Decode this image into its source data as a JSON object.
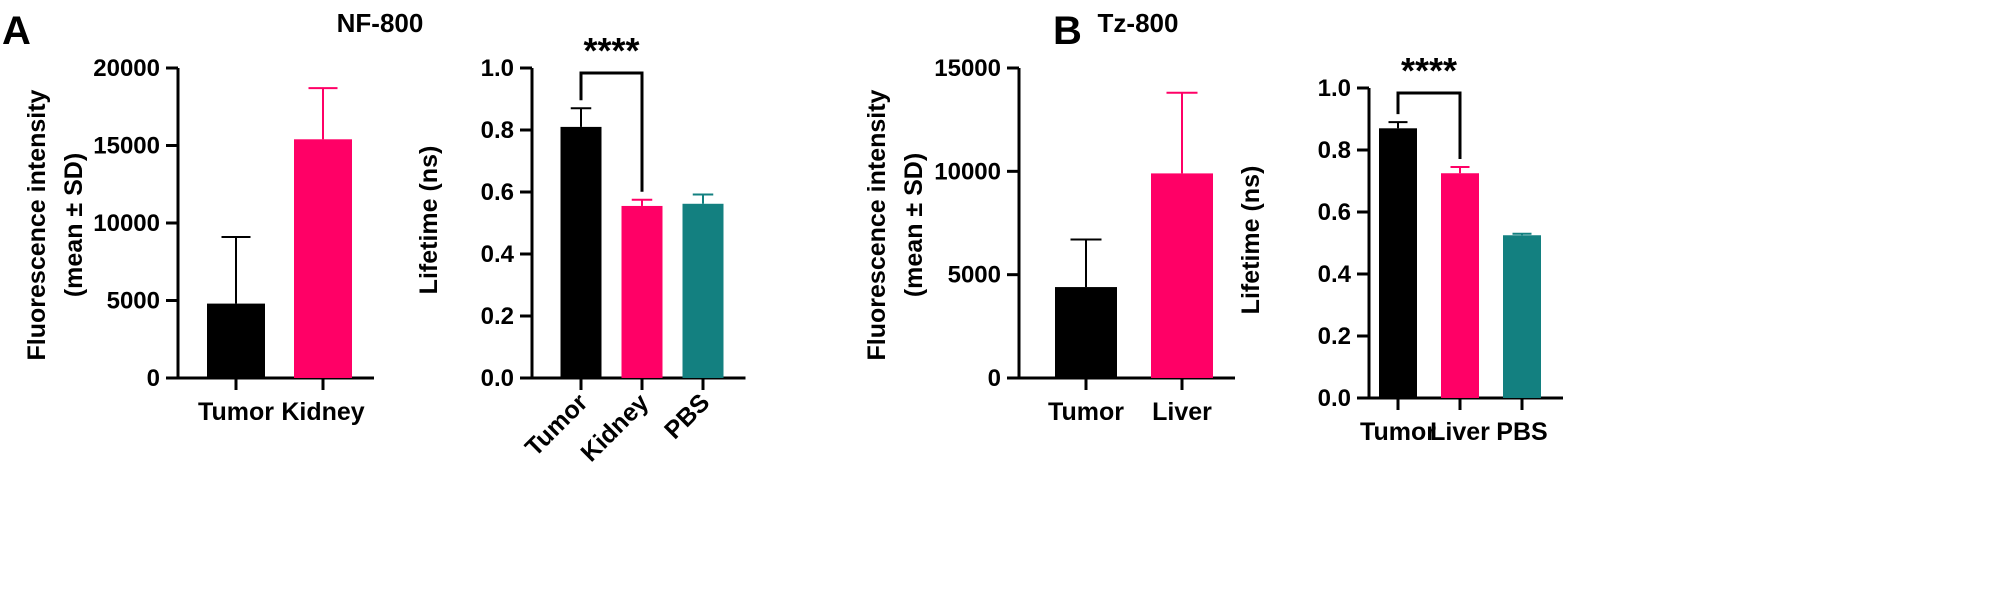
{
  "panels": [
    {
      "letter": "A"
    },
    {
      "letter": "B"
    }
  ],
  "chart_data": [
    {
      "type": "bar",
      "panel": "A",
      "title": "NF-800",
      "ylabel_line1": "Fluorescence intensity",
      "ylabel_line2": "(mean ± SD)",
      "xlabel": "",
      "categories": [
        "Tumor",
        "Kidney"
      ],
      "values": [
        4800,
        15400
      ],
      "errors": [
        4300,
        3300
      ],
      "colors": [
        "#000000",
        "#ff0066"
      ],
      "ylim": [
        0,
        20000
      ],
      "yticks": [
        0,
        5000,
        10000,
        15000,
        20000
      ],
      "tick_labels": [
        "0",
        "5000",
        "10000",
        "15000",
        "20000"
      ],
      "rotate_labels": false
    },
    {
      "type": "bar",
      "panel": "A",
      "title": "",
      "ylabel_line1": "Lifetime (ns)",
      "ylabel_line2": "",
      "xlabel": "",
      "categories": [
        "Tumor",
        "Kidney",
        "PBS"
      ],
      "values": [
        0.81,
        0.555,
        0.562
      ],
      "errors": [
        0.06,
        0.02,
        0.03
      ],
      "colors": [
        "#000000",
        "#ff0066",
        "#138080"
      ],
      "ylim": [
        0,
        1.0
      ],
      "yticks": [
        0,
        0.2,
        0.4,
        0.6,
        0.8,
        1.0
      ],
      "tick_labels": [
        "0.0",
        "0.2",
        "0.4",
        "0.6",
        "0.8",
        "1.0"
      ],
      "rotate_labels": true,
      "significance": {
        "label": "****",
        "from": 0,
        "to": 1
      }
    },
    {
      "type": "bar",
      "panel": "B",
      "title": "Tz-800",
      "ylabel_line1": "Fluorescence intensity",
      "ylabel_line2": "(mean ± SD)",
      "xlabel": "",
      "categories": [
        "Tumor",
        "Liver"
      ],
      "values": [
        4400,
        9900
      ],
      "errors": [
        2300,
        3900
      ],
      "colors": [
        "#000000",
        "#ff0066"
      ],
      "ylim": [
        0,
        15000
      ],
      "yticks": [
        0,
        5000,
        10000,
        15000
      ],
      "tick_labels": [
        "0",
        "5000",
        "10000",
        "15000"
      ],
      "rotate_labels": false
    },
    {
      "type": "bar",
      "panel": "B",
      "title": "",
      "ylabel_line1": "Lifetime (ns)",
      "ylabel_line2": "",
      "xlabel": "",
      "categories": [
        "Tumor",
        "Liver",
        "PBS"
      ],
      "values": [
        0.87,
        0.725,
        0.525
      ],
      "errors": [
        0.02,
        0.02,
        0.005
      ],
      "colors": [
        "#000000",
        "#ff0066",
        "#138080"
      ],
      "ylim": [
        0,
        1.0
      ],
      "yticks": [
        0,
        0.2,
        0.4,
        0.6,
        0.8,
        1.0
      ],
      "tick_labels": [
        "0.0",
        "0.2",
        "0.4",
        "0.6",
        "0.8",
        "1.0"
      ],
      "rotate_labels": false,
      "significance": {
        "label": "****",
        "from": 0,
        "to": 1
      }
    }
  ]
}
